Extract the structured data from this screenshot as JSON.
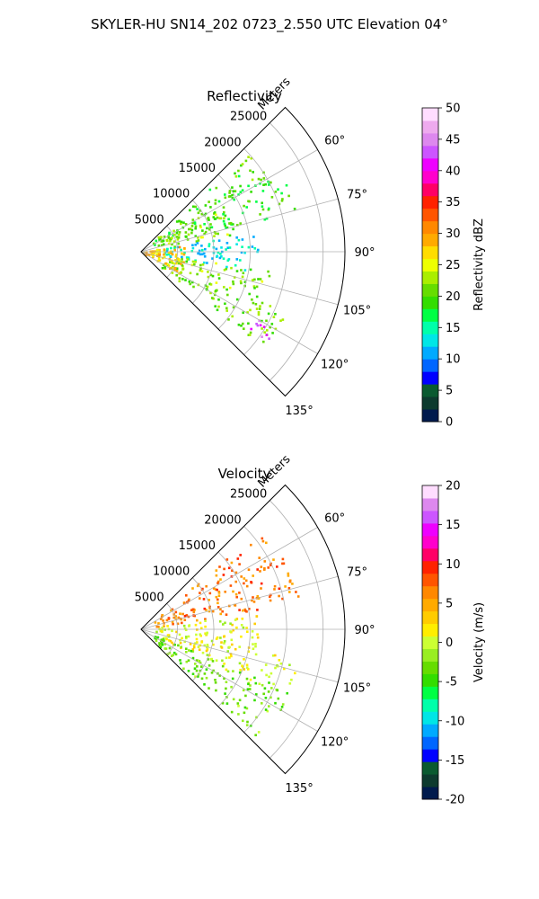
{
  "figure": {
    "suptitle": "SKYLER-HU  SN14_202  0723_2.550 UTC Elevation 04°"
  },
  "chart_data": [
    {
      "type": "heatmap",
      "projection": "polar-sector",
      "title": "Reflectivity",
      "radial_label": "Meters",
      "radial_ticks": [
        5000,
        10000,
        15000,
        20000,
        25000
      ],
      "radial_max": 28000,
      "angle_ticks": [
        "60°",
        "75°",
        "90°",
        "105°",
        "120°",
        "135°"
      ],
      "angle_tick_values": [
        60,
        75,
        90,
        105,
        120,
        135
      ],
      "angle_range": [
        45,
        135
      ],
      "grid": true,
      "colorbar": {
        "label": "Reflectivity dBZ",
        "min": 0,
        "max": 50,
        "ticks": [
          0,
          5,
          10,
          15,
          20,
          25,
          30,
          35,
          40,
          45,
          50
        ],
        "colors": [
          "#001a4d",
          "#0d3a2e",
          "#0a5a30",
          "#0000ff",
          "#0066ff",
          "#00aaff",
          "#00e6e6",
          "#00ffaa",
          "#00ff44",
          "#33dd00",
          "#66dd00",
          "#aaee00",
          "#eeff00",
          "#ffdd00",
          "#ffaa00",
          "#ff8800",
          "#ff5500",
          "#ff2200",
          "#ff0066",
          "#ff00cc",
          "#ee00ff",
          "#cc55ff",
          "#dd88ee",
          "#eeaaee",
          "#ffddff"
        ]
      },
      "regions": [
        {
          "az": [
            47,
            62
          ],
          "r": [
            2000,
            20000
          ],
          "value": 20
        },
        {
          "az": [
            57,
            75
          ],
          "r": [
            8000,
            22000
          ],
          "value": 19
        },
        {
          "az": [
            62,
            80
          ],
          "r": [
            2000,
            13000
          ],
          "value": 22
        },
        {
          "az": [
            80,
            100
          ],
          "r": [
            3000,
            16000
          ],
          "value": 13
        },
        {
          "az": [
            98,
            112
          ],
          "r": [
            4000,
            18000
          ],
          "value": 22
        },
        {
          "az": [
            112,
            128
          ],
          "r": [
            3000,
            22000
          ],
          "value": 21
        },
        {
          "az": [
            120,
            126
          ],
          "r": [
            18000,
            22000
          ],
          "value": 42
        },
        {
          "az": [
            80,
            120
          ],
          "r": [
            0,
            6000
          ],
          "value": 28
        }
      ]
    },
    {
      "type": "heatmap",
      "projection": "polar-sector",
      "title": "Velocity",
      "radial_label": "Meters",
      "radial_ticks": [
        5000,
        10000,
        15000,
        20000,
        25000
      ],
      "radial_max": 28000,
      "angle_ticks": [
        "60°",
        "75°",
        "90°",
        "105°",
        "120°",
        "135°"
      ],
      "angle_tick_values": [
        60,
        75,
        90,
        105,
        120,
        135
      ],
      "angle_range": [
        45,
        135
      ],
      "grid": true,
      "colorbar": {
        "label": "Velocity (m/s)",
        "min": -20,
        "max": 20,
        "ticks": [
          -20,
          -15,
          -10,
          -5,
          0,
          5,
          10,
          15,
          20
        ],
        "colors": [
          "#001a4d",
          "#0d3a2e",
          "#0a5a30",
          "#0000ff",
          "#0066ff",
          "#00aaff",
          "#00e6e6",
          "#00ffaa",
          "#00ff44",
          "#33dd00",
          "#66dd00",
          "#99ee22",
          "#ccff33",
          "#ffee00",
          "#ffcc00",
          "#ffaa00",
          "#ff8800",
          "#ff5500",
          "#ff2200",
          "#ff0066",
          "#ff00cc",
          "#ee00ff",
          "#cc55ff",
          "#dd88ee",
          "#ffddff"
        ]
      },
      "regions": [
        {
          "az": [
            50,
            80
          ],
          "r": [
            2000,
            22000
          ],
          "value": 7
        },
        {
          "az": [
            80,
            100
          ],
          "r": [
            2000,
            16000
          ],
          "value": 1
        },
        {
          "az": [
            100,
            115
          ],
          "r": [
            3000,
            22000
          ],
          "value": 1
        },
        {
          "az": [
            112,
            133
          ],
          "r": [
            2000,
            22000
          ],
          "value": -3
        }
      ]
    }
  ]
}
